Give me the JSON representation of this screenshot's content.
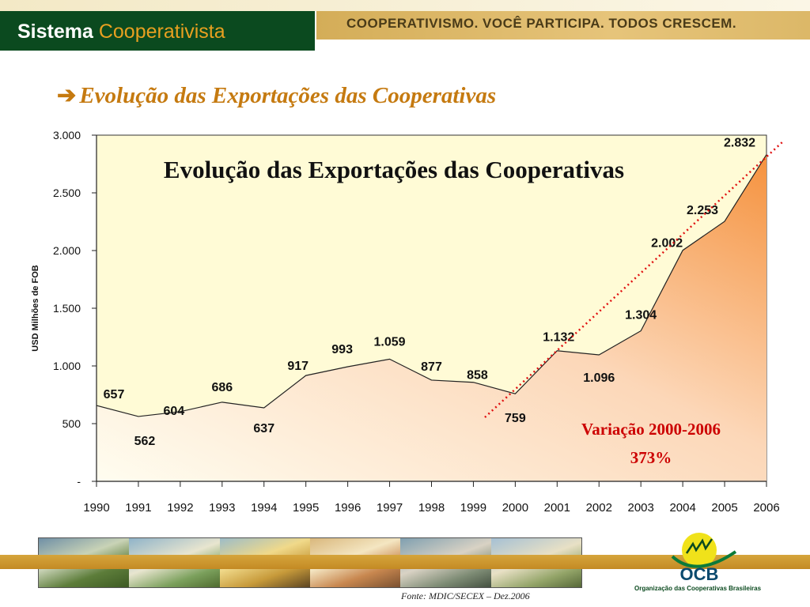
{
  "header": {
    "brand_bold": "Sistema",
    "brand_light": "Cooperativista",
    "slogan": "COOPERATIVISMO. VOCÊ PARTICIPA. TODOS CRESCEM."
  },
  "slide_title": "Evolução das Exportações das Cooperativas",
  "chart_data": {
    "type": "area",
    "title": "Evolução das Exportações das Cooperativas",
    "ylabel": "USD Milhões de FOB",
    "xlabel": "",
    "categories": [
      "1990",
      "1991",
      "1992",
      "1993",
      "1994",
      "1995",
      "1996",
      "1997",
      "1998",
      "1999",
      "2000",
      "2001",
      "2002",
      "2003",
      "2004",
      "2005",
      "2006"
    ],
    "values": [
      657,
      562,
      604,
      686,
      637,
      917,
      993,
      1059,
      877,
      858,
      759,
      1132,
      1096,
      1304,
      2002,
      2253,
      2832
    ],
    "data_labels": [
      "657",
      "562",
      "604",
      "686",
      "637",
      "917",
      "993",
      "1.059",
      "877",
      "858",
      "759",
      "1.132",
      "1.096",
      "1.304",
      "2.002",
      "2.253",
      "2.832"
    ],
    "ylim": [
      0,
      3000
    ],
    "y_ticks": [
      0,
      500,
      1000,
      1500,
      2000,
      2500,
      3000
    ],
    "y_tick_labels": [
      "-",
      "500",
      "1.000",
      "1.500",
      "2.000",
      "2.500",
      "3.000"
    ],
    "trendline": "dotted red line from 2000 rising through 2006",
    "annotation": {
      "line1": "Variação 2000-2006",
      "line2": "373%"
    },
    "colors": {
      "fill_top": "#f5923e",
      "fill_bottom": "#fffdf0",
      "plot_bg": "#fffbd6",
      "trend": "#e01010",
      "annotation": "#cc0000"
    },
    "grid": false,
    "legend": "none"
  },
  "footer": {
    "source": "Fonte: MDIC/SECEX – Dez.2006",
    "logo_text": "OCB",
    "logo_subtitle": "Organização das Cooperativas Brasileiras"
  },
  "colors": {
    "brand_green": "#0b4a1f",
    "brand_gold": "#e8a020",
    "title_orange": "#c57a10"
  }
}
